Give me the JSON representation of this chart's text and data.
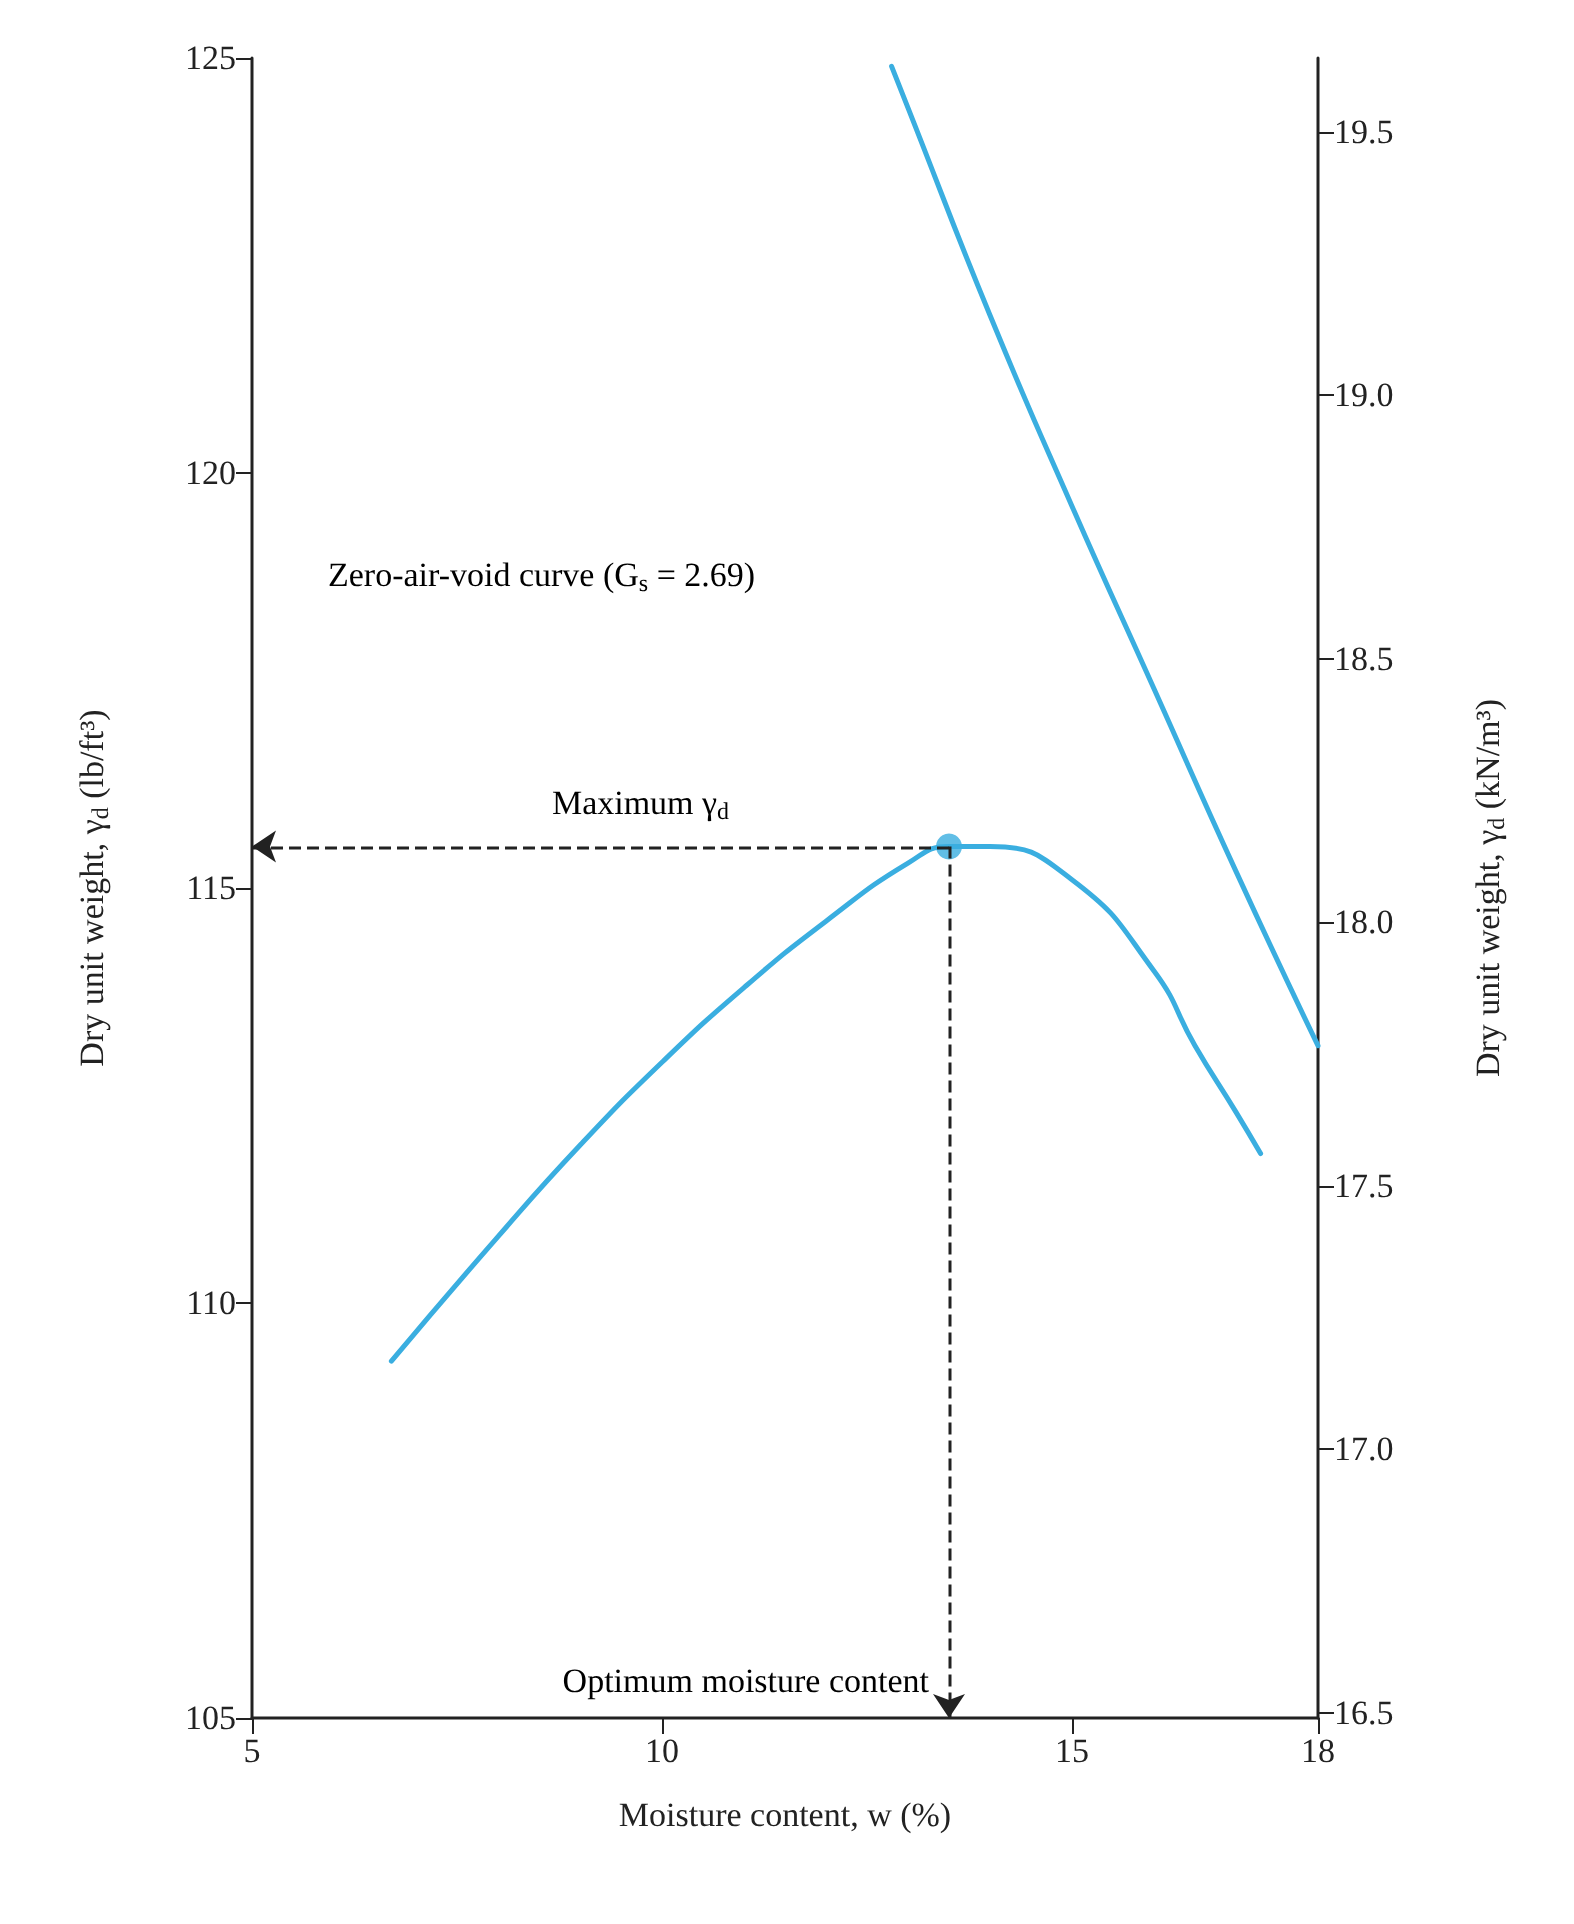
{
  "chart_data": {
    "type": "line",
    "xlabel": "Moisture content, w (%)",
    "ylabel": "Dry unit weight, γ$_{d}$ (lb/ft³)",
    "y2label": "Dry unit weight, γ$_{d}$ (kN/m³)",
    "xlim": [
      5,
      18
    ],
    "xticks": [
      5,
      10,
      15,
      18
    ],
    "ylim": [
      105,
      125
    ],
    "yticks": [
      105,
      110,
      115,
      120,
      125
    ],
    "y2lim": [
      16.49,
      19.64
    ],
    "y2ticks": [
      16.5,
      {
        "value": 17,
        "label": "17.0"
      },
      17.5,
      {
        "value": 18,
        "label": "18.0"
      },
      18.5,
      {
        "value": 19,
        "label": "19.0"
      },
      19.5
    ],
    "grid": false,
    "line_style": "solid",
    "annotations": [
      "Zero-air-void curve (G$_{s}$ = 2.69)",
      "Maximum γ$_{d}$",
      "Optimum moisture content"
    ],
    "series": [
      {
        "color": "#3aaee0",
        "marker": "none",
        "x": [
          6.7,
          8,
          9,
          10,
          11,
          12,
          13,
          13.5,
          14,
          15,
          16,
          16.5,
          17,
          17.3
        ],
        "values": [
          109.3,
          110.8,
          111.9,
          112.9,
          113.8,
          114.6,
          115.3,
          115.5,
          115.5,
          115.1,
          114.0,
          113.1,
          112.3,
          111.8
        ]
      },
      {
        "color": "#3aaee0",
        "marker": "none",
        "x": [
          12.8,
          13,
          14,
          15,
          16,
          17,
          18
        ],
        "values": [
          124.9,
          124.4,
          121.9,
          119.6,
          117.4,
          115.2,
          113.1
        ]
      },
      {
        "type": "scatter",
        "color": "#3aaee0",
        "marker": "circle",
        "x": [
          13.5
        ],
        "values": [
          115.5
        ]
      }
    ]
  }
}
